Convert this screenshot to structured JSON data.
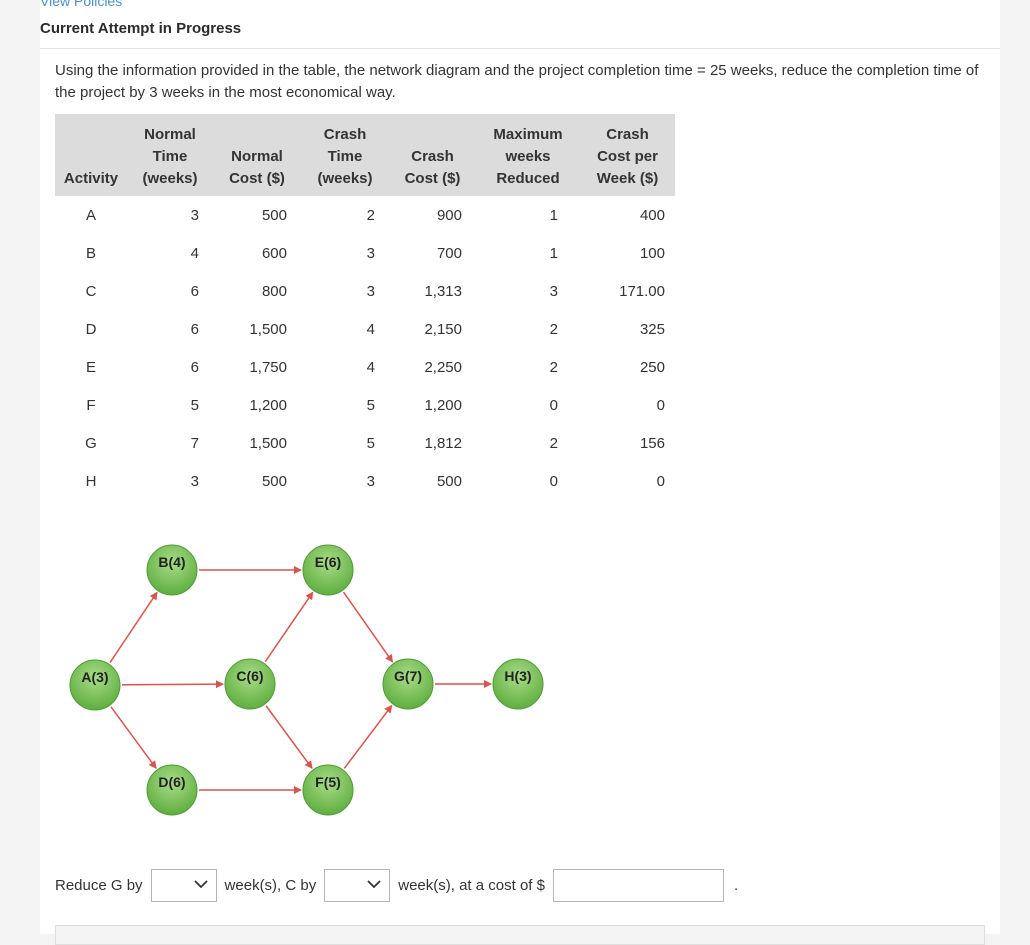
{
  "header": {
    "link_text": "View Policies",
    "attempt_title": "Current Attempt in Progress"
  },
  "question": {
    "text": "Using the information provided in the table, the network diagram and the project completion time = 25 weeks, reduce the completion time of the project by 3 weeks in the most economical way."
  },
  "table": {
    "headers": {
      "activity": "Activity",
      "normal_time": [
        "Normal",
        "Time",
        "(weeks)"
      ],
      "normal_cost": [
        "Normal",
        "Cost ($)"
      ],
      "crash_time": [
        "Crash",
        "Time",
        "(weeks)"
      ],
      "crash_cost": [
        "Crash",
        "Cost ($)"
      ],
      "max_weeks": [
        "Maximum",
        "weeks",
        "Reduced"
      ],
      "crash_cost_week": [
        "Crash",
        "Cost per",
        "Week ($)"
      ]
    },
    "rows": [
      {
        "activity": "A",
        "normal_time": "3",
        "normal_cost": "500",
        "crash_time": "2",
        "crash_cost": "900",
        "max_weeks": "1",
        "crash_cost_week": "400"
      },
      {
        "activity": "B",
        "normal_time": "4",
        "normal_cost": "600",
        "crash_time": "3",
        "crash_cost": "700",
        "max_weeks": "1",
        "crash_cost_week": "100"
      },
      {
        "activity": "C",
        "normal_time": "6",
        "normal_cost": "800",
        "crash_time": "3",
        "crash_cost": "1,313",
        "max_weeks": "3",
        "crash_cost_week": "171.00"
      },
      {
        "activity": "D",
        "normal_time": "6",
        "normal_cost": "1,500",
        "crash_time": "4",
        "crash_cost": "2,150",
        "max_weeks": "2",
        "crash_cost_week": "325"
      },
      {
        "activity": "E",
        "normal_time": "6",
        "normal_cost": "1,750",
        "crash_time": "4",
        "crash_cost": "2,250",
        "max_weeks": "2",
        "crash_cost_week": "250"
      },
      {
        "activity": "F",
        "normal_time": "5",
        "normal_cost": "1,200",
        "crash_time": "5",
        "crash_cost": "1,200",
        "max_weeks": "0",
        "crash_cost_week": "0"
      },
      {
        "activity": "G",
        "normal_time": "7",
        "normal_cost": "1,500",
        "crash_time": "5",
        "crash_cost": "1,812",
        "max_weeks": "2",
        "crash_cost_week": "156"
      },
      {
        "activity": "H",
        "normal_time": "3",
        "normal_cost": "500",
        "crash_time": "3",
        "crash_cost": "500",
        "max_weeks": "0",
        "crash_cost_week": "0"
      }
    ]
  },
  "diagram": {
    "nodes": {
      "A": "A(3)",
      "B": "B(4)",
      "C": "C(6)",
      "D": "D(6)",
      "E": "E(6)",
      "F": "F(5)",
      "G": "G(7)",
      "H": "H(3)"
    },
    "edges": [
      [
        "A",
        "B"
      ],
      [
        "A",
        "C"
      ],
      [
        "A",
        "D"
      ],
      [
        "B",
        "E"
      ],
      [
        "C",
        "E"
      ],
      [
        "C",
        "F"
      ],
      [
        "D",
        "F"
      ],
      [
        "E",
        "G"
      ],
      [
        "F",
        "G"
      ],
      [
        "G",
        "H"
      ]
    ],
    "colors": {
      "node_fill": "#7cc35a",
      "node_edge": "#4f9a35",
      "arrow": "#d9534f"
    }
  },
  "answer": {
    "part1": "Reduce G by",
    "part2": "week(s), C by",
    "part3": "week(s), at a cost of $",
    "part4": ".",
    "g_weeks_value": "",
    "c_weeks_value": "",
    "cost_value": ""
  }
}
